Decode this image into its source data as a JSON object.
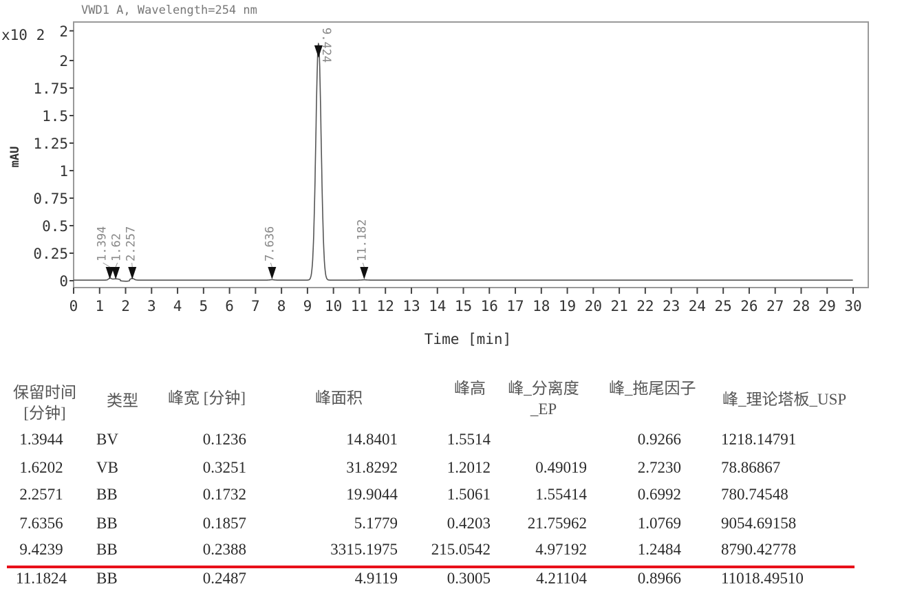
{
  "chart_data": {
    "type": "line",
    "title": "VWD1 A, Wavelength=254 nm",
    "xlabel": "Time [min]",
    "ylabel": "mAU",
    "y_multiplier": "x10 2",
    "xlim": [
      0,
      30
    ],
    "ylim": [
      0,
      2.35
    ],
    "x_ticks": [
      "0",
      "1",
      "2",
      "3",
      "4",
      "5",
      "6",
      "7",
      "8",
      "9",
      "10",
      "11",
      "12",
      "13",
      "14",
      "15",
      "16",
      "17",
      "18",
      "19",
      "20",
      "21",
      "22",
      "23",
      "24",
      "25",
      "26",
      "27",
      "28",
      "29",
      "30"
    ],
    "y_ticks": [
      "0",
      "0.25",
      "0.5",
      "0.75",
      "1",
      "1.25",
      "1.5",
      "1.75",
      "2",
      "2"
    ],
    "grid": false,
    "line_color": "#555555",
    "peaks": [
      {
        "label": "1.394",
        "rt": 1.3944,
        "height": 1.5514,
        "width": 0.1236
      },
      {
        "label": "1.62",
        "rt": 1.6202,
        "height": 1.2012,
        "width": 0.3251
      },
      {
        "label": "2.257",
        "rt": 2.2571,
        "height": 1.5061,
        "width": 0.1732
      },
      {
        "label": "7.636",
        "rt": 7.6356,
        "height": 0.4203,
        "width": 0.1857
      },
      {
        "label": "9.424",
        "rt": 9.4239,
        "height": 215.0542,
        "width": 0.2388
      },
      {
        "label": "11.182",
        "rt": 11.1824,
        "height": 0.3005,
        "width": 0.2487
      }
    ]
  },
  "table": {
    "headers": [
      [
        "保留时间",
        "[分钟]"
      ],
      [
        "类型"
      ],
      [
        "峰宽 [分钟]"
      ],
      [
        "峰面积"
      ],
      [
        "峰高"
      ],
      [
        "峰_分离度",
        "_EP"
      ],
      [
        "峰_拖尾因子"
      ],
      [
        "峰_理论塔板_USP"
      ]
    ],
    "rows": [
      [
        "1.3944",
        "BV",
        "0.1236",
        "14.8401",
        "1.5514",
        "",
        "0.9266",
        "1218.14791"
      ],
      [
        "1.6202",
        "VB",
        "0.3251",
        "31.8292",
        "1.2012",
        "0.49019",
        "2.7230",
        "78.86867"
      ],
      [
        "2.2571",
        "BB",
        "0.1732",
        "19.9044",
        "1.5061",
        "1.55414",
        "0.6992",
        "780.74548"
      ],
      [
        "7.6356",
        "BB",
        "0.1857",
        "5.1779",
        "0.4203",
        "21.75962",
        "1.0769",
        "9054.69158"
      ],
      [
        "9.4239",
        "BB",
        "0.2388",
        "3315.1975",
        "215.0542",
        "4.97192",
        "1.2484",
        "8790.42778"
      ],
      [
        "11.1824",
        "BB",
        "0.2487",
        "4.9119",
        "0.3005",
        "4.21104",
        "0.8966",
        "11018.49510"
      ]
    ],
    "highlight_color": "#e8101a"
  }
}
